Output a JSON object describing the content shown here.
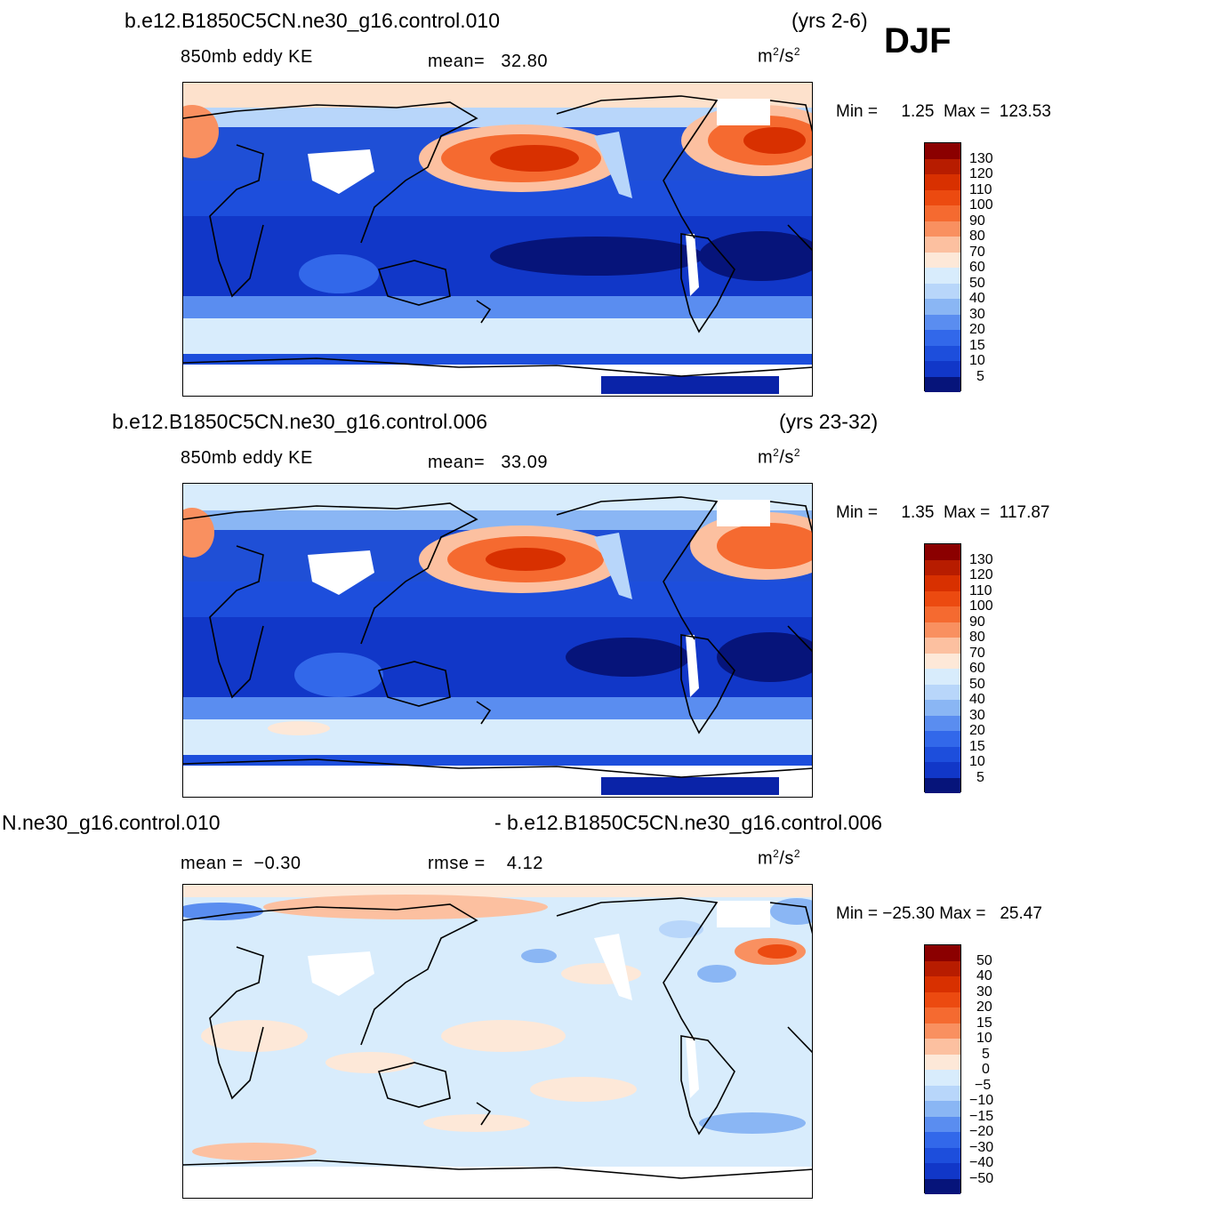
{
  "season": "DJF",
  "panels": [
    {
      "case": "b.e12.B1850C5CN.ne30_g16.control.010",
      "years": "(yrs 2-6)",
      "variable": "850mb eddy KE",
      "stat_label": "mean=",
      "stat_value": "32.80",
      "units_base": "m",
      "units_exp1": "2",
      "units_mid": "/s",
      "units_exp2": "2",
      "min_label": "Min =",
      "min_value": "1.25",
      "max_label": "Max =",
      "max_value": "123.53",
      "levels": [
        "130",
        "120",
        "110",
        "100",
        "90",
        "80",
        "70",
        "60",
        "50",
        "40",
        "30",
        "20",
        "15",
        "10",
        "5"
      ]
    },
    {
      "case": "b.e12.B1850C5CN.ne30_g16.control.006",
      "years": "(yrs 23-32)",
      "variable": "850mb eddy KE",
      "stat_label": "mean=",
      "stat_value": "33.09",
      "units_base": "m",
      "units_exp1": "2",
      "units_mid": "/s",
      "units_exp2": "2",
      "min_label": "Min =",
      "min_value": "1.35",
      "max_label": "Max =",
      "max_value": "117.87",
      "levels": [
        "130",
        "120",
        "110",
        "100",
        "90",
        "80",
        "70",
        "60",
        "50",
        "40",
        "30",
        "20",
        "15",
        "10",
        "5"
      ]
    },
    {
      "case_left": "N.ne30_g16.control.010",
      "case_right": "- b.e12.B1850C5CN.ne30_g16.control.006",
      "mean_label": "mean =",
      "mean_value": "−0.30",
      "rmse_label": "rmse =",
      "rmse_value": "4.12",
      "units_base": "m",
      "units_exp1": "2",
      "units_mid": "/s",
      "units_exp2": "2",
      "min_label": "Min =",
      "min_value": "−25.30",
      "max_label": "Max =",
      "max_value": "25.47",
      "levels": [
        "50",
        "40",
        "30",
        "20",
        "15",
        "10",
        "5",
        "0",
        "−5",
        "−10",
        "−15",
        "−20",
        "−30",
        "−40",
        "−50"
      ]
    }
  ],
  "colors": {
    "colorbar_warm": [
      "#8b0000",
      "#b71c00",
      "#d83000",
      "#ec4a10",
      "#f56a30",
      "#f99060",
      "#fcc0a0",
      "#fde8d8"
    ],
    "colorbar_cool": [
      "#d8ecfc",
      "#b8d6fa",
      "#8ab6f4",
      "#5a8df0",
      "#3268ea",
      "#1d4edc",
      "#1137c8",
      "#0a23a8",
      "#06147a"
    ]
  }
}
